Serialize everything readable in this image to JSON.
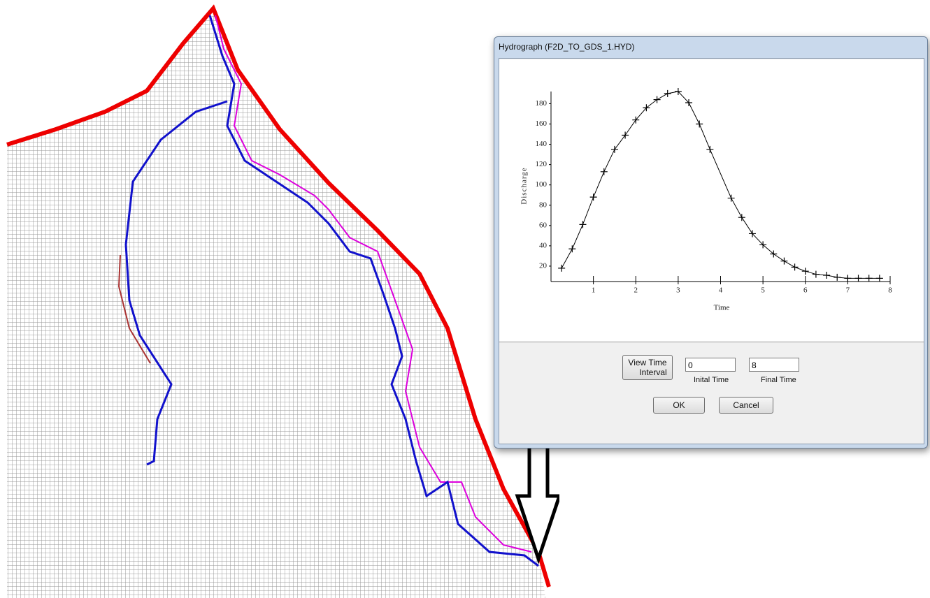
{
  "dialog": {
    "title": "Hydrograph (F2D_TO_GDS_1.HYD)",
    "view_button": [
      "View Time",
      "Interval"
    ],
    "initial_time_value": "0",
    "initial_time_label": "Inital Time",
    "final_time_value": "8",
    "final_time_label": "Final Time",
    "ok_button": "OK",
    "cancel_button": "Cancel"
  },
  "chart_data": {
    "type": "line",
    "xlabel": "Time",
    "ylabel": "Discharge",
    "x": [
      0.25,
      0.5,
      0.75,
      1,
      1.25,
      1.5,
      1.75,
      2,
      2.25,
      2.5,
      2.75,
      3,
      3.25,
      3.5,
      3.75,
      4.25,
      4.5,
      4.75,
      5,
      5.25,
      5.5,
      5.75,
      6,
      6.25,
      6.5,
      6.75,
      7,
      7.25,
      7.5,
      7.75
    ],
    "values": [
      18,
      37,
      61,
      88,
      113,
      135,
      149,
      164,
      176,
      184,
      190,
      192,
      181,
      160,
      135,
      87,
      68,
      52,
      41,
      32,
      25,
      19,
      15,
      12,
      11,
      9,
      8,
      8,
      8,
      8
    ],
    "color": "#000000",
    "marker": "plus",
    "xlim": [
      0,
      8
    ],
    "ylim": [
      0,
      192
    ],
    "xticks": [
      1,
      2,
      3,
      4,
      5,
      6,
      7,
      8
    ],
    "yticks": [
      20,
      40,
      60,
      80,
      100,
      120,
      140,
      160,
      180
    ]
  }
}
